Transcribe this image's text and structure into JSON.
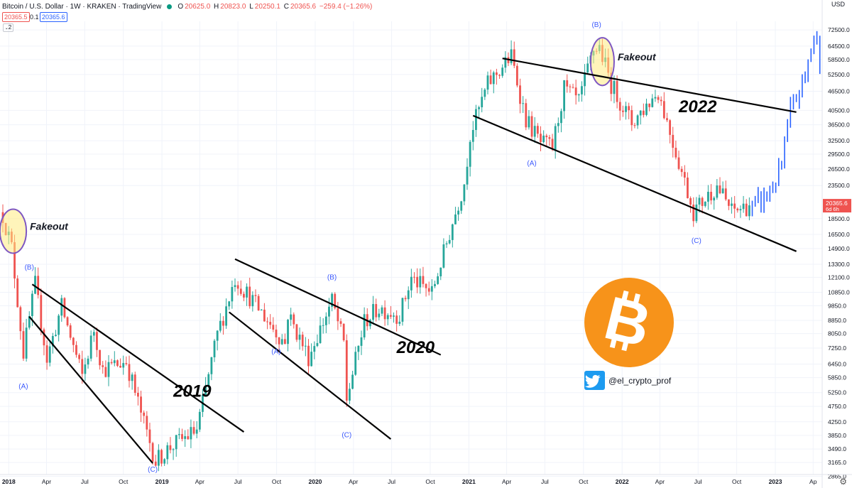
{
  "header": {
    "symbol": "Bitcoin / U.S. Dollar · 1W · KRAKEN · TradingView",
    "open_label": "O",
    "open": "20625.0",
    "high_label": "H",
    "high": "20823.0",
    "low_label": "L",
    "low": "20250.1",
    "close_label": "C",
    "close": "20365.6",
    "change": "−259.4 (−1.26%)",
    "bid": "20365.5",
    "spread": "0.1",
    "ask": "20365.6",
    "indicator_count": "2"
  },
  "axis": {
    "currency": "USD"
  },
  "colors": {
    "up": "#26a69a",
    "down": "#ef5350",
    "projection": "#2962ff",
    "price_tag": "#ef5350",
    "wave_label": "#3d5afe",
    "bitcoin_orange": "#f7931a",
    "twitter_blue": "#1d9bf0"
  },
  "watermark": {
    "handle": "@el_crypto_prof"
  },
  "chart_data": {
    "type": "candlestick",
    "title": "Bitcoin / U.S. Dollar · 1W · KRAKEN · TradingView",
    "yscale": "log",
    "ylim": [
      2500,
      80000
    ],
    "y_ticks": [
      72500,
      64500,
      58500,
      52500,
      46500,
      40500,
      36500,
      32500,
      29500,
      26500,
      23500,
      18500,
      16500,
      14900,
      13300,
      12100,
      10850,
      9850,
      8850,
      8050,
      7250,
      6450,
      5850,
      5250,
      4750,
      4250,
      3850,
      3490,
      3165,
      2865
    ],
    "x_ticks": [
      "2018",
      "Apr",
      "Jul",
      "Oct",
      "2019",
      "Apr",
      "Jul",
      "Oct",
      "2020",
      "Apr",
      "Jul",
      "Oct",
      "2021",
      "Apr",
      "Jul",
      "Oct",
      "2022",
      "Apr",
      "Jul",
      "Oct",
      "2023",
      "Ap"
    ],
    "x_tick_dates": [
      "2018-01",
      "2018-04",
      "2018-07",
      "2018-10",
      "2019-01",
      "2019-04",
      "2019-07",
      "2019-10",
      "2020-01",
      "2020-04",
      "2020-07",
      "2020-10",
      "2021-01",
      "2021-04",
      "2021-07",
      "2021-10",
      "2022-01",
      "2022-04",
      "2022-07",
      "2022-10",
      "2023-01",
      "2023-04"
    ],
    "last_price": {
      "value": "20365.6",
      "countdown": "6d 6h"
    },
    "price_path": [
      [
        "2017-12-18",
        19000
      ],
      [
        "2018-01-08",
        15000
      ],
      [
        "2018-02-05",
        7000
      ],
      [
        "2018-03-05",
        11500
      ],
      [
        "2018-04-02",
        6700
      ],
      [
        "2018-05-07",
        9800
      ],
      [
        "2018-06-25",
        5900
      ],
      [
        "2018-07-23",
        8300
      ],
      [
        "2018-08-13",
        6200
      ],
      [
        "2018-10-08",
        6600
      ],
      [
        "2018-11-19",
        4200
      ],
      [
        "2018-12-17",
        3200
      ],
      [
        "2019-01-21",
        3550
      ],
      [
        "2019-03-25",
        4000
      ],
      [
        "2019-05-13",
        8000
      ],
      [
        "2019-06-24",
        12000
      ],
      [
        "2019-07-29",
        10500
      ],
      [
        "2019-10-21",
        7500
      ],
      [
        "2019-10-28",
        9300
      ],
      [
        "2019-12-16",
        6800
      ],
      [
        "2020-02-10",
        10200
      ],
      [
        "2020-03-09",
        7500
      ],
      [
        "2020-03-16",
        5000
      ],
      [
        "2020-04-27",
        8800
      ],
      [
        "2020-06-01",
        9700
      ],
      [
        "2020-07-20",
        9200
      ],
      [
        "2020-08-17",
        12000
      ],
      [
        "2020-10-05",
        10800
      ],
      [
        "2020-11-09",
        15500
      ],
      [
        "2020-12-21",
        24000
      ],
      [
        "2021-01-04",
        34000
      ],
      [
        "2021-02-15",
        49000
      ],
      [
        "2021-04-12",
        60000
      ],
      [
        "2021-05-17",
        38000
      ],
      [
        "2021-06-21",
        32000
      ],
      [
        "2021-07-19",
        31000
      ],
      [
        "2021-08-16",
        47500
      ],
      [
        "2021-09-20",
        43000
      ],
      [
        "2021-10-25",
        63000
      ],
      [
        "2021-11-08",
        64000
      ],
      [
        "2021-12-06",
        49000
      ],
      [
        "2022-01-24",
        37000
      ],
      [
        "2022-03-28",
        46500
      ],
      [
        "2022-05-09",
        30000
      ],
      [
        "2022-06-13",
        21000
      ],
      [
        "2022-06-20",
        19500
      ],
      [
        "2022-08-15",
        23500
      ],
      [
        "2022-09-19",
        19500
      ],
      [
        "2022-10-31",
        20365.6
      ]
    ],
    "projection": {
      "label": "",
      "path": [
        [
          "2022-11-07",
          19800
        ],
        [
          "2022-12-19",
          22500
        ],
        [
          "2023-01-16",
          27000
        ],
        [
          "2023-02-06",
          40000
        ],
        [
          "2023-03-13",
          52000
        ],
        [
          "2023-04-03",
          70000
        ],
        [
          "2023-04-24",
          56000
        ]
      ]
    },
    "trendlines": [
      {
        "p1": [
          "2018-02-26",
          11500
        ],
        "p2": [
          "2019-07-15",
          3950
        ]
      },
      {
        "p1": [
          "2018-02-19",
          9100
        ],
        "p2": [
          "2018-12-10",
          3150
        ]
      },
      {
        "p1": [
          "2019-06-24",
          13800
        ],
        "p2": [
          "2020-10-26",
          6900
        ]
      },
      {
        "p1": [
          "2019-06-10",
          9400
        ],
        "p2": [
          "2020-06-29",
          3750
        ]
      },
      {
        "p1": [
          "2021-03-22",
          59000
        ],
        "p2": [
          "2023-02-20",
          40000
        ]
      },
      {
        "p1": [
          "2021-01-11",
          39000
        ],
        "p2": [
          "2023-02-20",
          14600
        ]
      }
    ],
    "fakeout_zones": [
      {
        "text": "Fakeout",
        "x_range": [
          "2017-12-11",
          "2018-02-12"
        ],
        "y_range": [
          14400,
          19800
        ]
      },
      {
        "text": "Fakeout",
        "x_range": [
          "2021-10-18",
          "2021-12-13"
        ],
        "y_range": [
          48500,
          68500
        ]
      }
    ],
    "wave_labels": [
      {
        "text": "(B)",
        "at": [
          "2018-02-19",
          12800
        ]
      },
      {
        "text": "(A)",
        "at": [
          "2018-02-05",
          5400
        ]
      },
      {
        "text": "(C)",
        "at": [
          "2018-12-10",
          2960
        ]
      },
      {
        "text": "(B)",
        "at": [
          "2020-02-10",
          11900
        ]
      },
      {
        "text": "(A)",
        "at": [
          "2019-09-30",
          6950
        ]
      },
      {
        "text": "(C)",
        "at": [
          "2020-03-16",
          3800
        ]
      },
      {
        "text": "(B)",
        "at": [
          "2021-11-01",
          74000
        ]
      },
      {
        "text": "(A)",
        "at": [
          "2021-05-31",
          27200
        ]
      },
      {
        "text": "(C)",
        "at": [
          "2022-06-27",
          15500
        ]
      }
    ],
    "year_labels": [
      {
        "text": "2019",
        "at": [
          "2019-01-28",
          5100
        ]
      },
      {
        "text": "2020",
        "at": [
          "2020-07-13",
          7000
        ]
      },
      {
        "text": "2022",
        "at": [
          "2022-05-16",
          40000
        ]
      }
    ]
  }
}
